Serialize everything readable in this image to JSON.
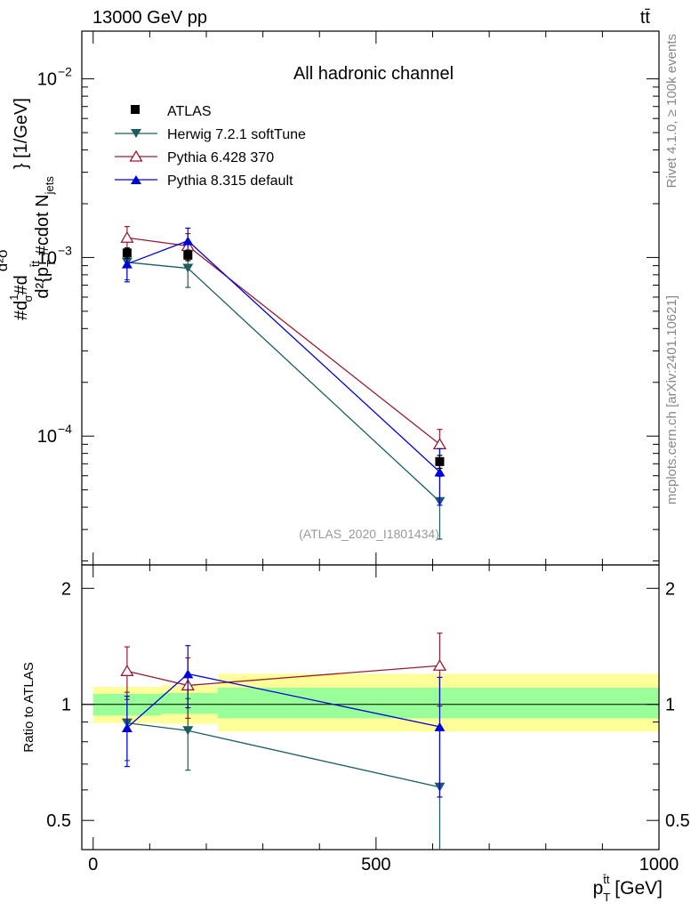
{
  "header": {
    "energy_label": "13000 GeV pp",
    "process_label": "tt̄"
  },
  "side_labels": {
    "rivet": "Rivet 4.1.0, ≥ 100k events",
    "source": "mcplots.cern.ch [arXiv:2401.10621]"
  },
  "chart_data": [
    {
      "type": "scatter",
      "panel": "main",
      "title": "All hadronic channel",
      "watermark": "(ATLAS_2020_I1801434)",
      "ylabel": "#d₁/σ#d d²σ / d²{p_T^tt #cdot N_jets} [1/GeV]",
      "ylabel_parts": [
        "#d",
        "1",
        "σ",
        "#d",
        "d²σ",
        "d²{p",
        "T",
        "t̄t",
        " #cdot N",
        "jets",
        "} [1/GeV]"
      ],
      "yscale": "log",
      "ylim": [
        1.9e-05,
        0.0185
      ],
      "xlim": [
        -20,
        1000
      ],
      "y_ticks": [
        {
          "value": 0.01,
          "base": "10",
          "exp": "−2"
        },
        {
          "value": 0.001,
          "base": "10",
          "exp": "−3"
        },
        {
          "value": 0.0001,
          "base": "10",
          "exp": "−4"
        }
      ],
      "legend": [
        {
          "name": "ATLAS",
          "color": "#000000",
          "marker": "square"
        },
        {
          "name": "Herwig 7.2.1 softTune",
          "color": "#1b5e60",
          "marker": "triangle-down"
        },
        {
          "name": "Pythia 6.428 370",
          "color": "#9b1b30",
          "marker": "triangle-open"
        },
        {
          "name": "Pythia 8.315 default",
          "color": "#0000dd",
          "marker": "triangle-up"
        }
      ],
      "series": [
        {
          "name": "ATLAS",
          "x": [
            60,
            167.5,
            612.5
          ],
          "values": [
            0.00106,
            0.00103,
            7.2e-05
          ],
          "err_lo": [
            7e-05,
            7e-05,
            6e-06
          ],
          "err_hi": [
            7e-05,
            7e-05,
            6e-06
          ]
        },
        {
          "name": "Herwig 7.2.1 softTune",
          "x": [
            60,
            167.5,
            612.5
          ],
          "values": [
            0.00094,
            0.00087,
            4.3e-05
          ],
          "err_lo": [
            0.00019,
            0.00019,
            1.65e-05
          ],
          "err_hi": [
            0.00019,
            0.00019,
            1.65e-05
          ]
        },
        {
          "name": "Pythia 6.428 370",
          "x": [
            60,
            167.5,
            612.5
          ],
          "values": [
            0.00129,
            0.00116,
            9e-05
          ],
          "err_lo": [
            0.0002,
            0.0002,
            1.9e-05
          ],
          "err_hi": [
            0.0002,
            0.0002,
            1.9e-05
          ]
        },
        {
          "name": "Pythia 8.315 default",
          "x": [
            60,
            167.5,
            612.5
          ],
          "values": [
            0.00092,
            0.00124,
            6.3e-05
          ],
          "err_lo": [
            0.00019,
            0.00022,
            2.2e-05
          ],
          "err_hi": [
            0.00019,
            0.00022,
            2.2e-05
          ]
        }
      ]
    },
    {
      "type": "scatter",
      "panel": "ratio",
      "ylabel": "Ratio to ATLAS",
      "xlabel": "p_T^tt [GeV]",
      "xlabel_parts": [
        "p",
        "T",
        "t̄t",
        " [GeV]"
      ],
      "yscale": "log",
      "ylim": [
        0.42,
        2.3
      ],
      "xlim": [
        -20,
        1000
      ],
      "x_ticks": [
        {
          "value": 0,
          "label": "0"
        },
        {
          "value": 500,
          "label": "500"
        },
        {
          "value": 1000,
          "label": "1000"
        }
      ],
      "y_ticks": [
        {
          "value": 0.5,
          "label": "0.5"
        },
        {
          "value": 1,
          "label": "1"
        },
        {
          "value": 2,
          "label": "2"
        }
      ],
      "bands": [
        {
          "x0": 0,
          "x1": 120,
          "inner": [
            0.935,
            1.065
          ],
          "outer": [
            0.895,
            1.11
          ]
        },
        {
          "x0": 120,
          "x1": 220,
          "inner": [
            0.945,
            1.07
          ],
          "outer": [
            0.89,
            1.12
          ]
        },
        {
          "x0": 220,
          "x1": 1000,
          "inner": [
            0.92,
            1.105
          ],
          "outer": [
            0.85,
            1.2
          ]
        }
      ],
      "series": [
        {
          "name": "Herwig 7.2.1 softTune",
          "x": [
            60,
            167.5,
            612.5
          ],
          "values": [
            0.895,
            0.855,
            0.61
          ],
          "err_lo": [
            0.18,
            0.18,
            0.25
          ],
          "err_hi": [
            0.18,
            0.18,
            0.25
          ]
        },
        {
          "name": "Pythia 6.428 370",
          "x": [
            60,
            167.5,
            612.5
          ],
          "values": [
            1.22,
            1.12,
            1.26
          ],
          "err_lo": [
            0.19,
            0.2,
            0.27
          ],
          "err_hi": [
            0.19,
            0.2,
            0.27
          ]
        },
        {
          "name": "Pythia 8.315 default",
          "x": [
            60,
            167.5,
            612.5
          ],
          "values": [
            0.87,
            1.2,
            0.875
          ],
          "err_lo": [
            0.18,
            0.22,
            0.3
          ],
          "err_hi": [
            0.18,
            0.22,
            0.3
          ]
        }
      ]
    }
  ]
}
